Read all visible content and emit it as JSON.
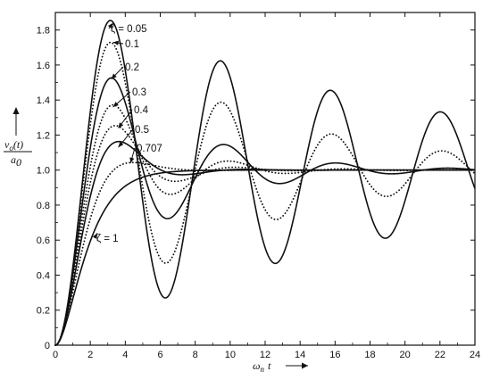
{
  "chart_data": {
    "type": "line",
    "title": "",
    "xlabel": {
      "symbol": "ω",
      "subscript": "n",
      "variable": "t"
    },
    "ylabel": {
      "numerator": "v",
      "numerator_sub": "o",
      "numerator_arg": "(t)",
      "denominator": "a",
      "denominator_sub": "0"
    },
    "xlim": [
      0,
      24
    ],
    "ylim": [
      0,
      1.9
    ],
    "x_ticks": [
      "0",
      "2",
      "4",
      "6",
      "8",
      "10",
      "12",
      "14",
      "16",
      "18",
      "20",
      "22",
      "24"
    ],
    "y_ticks": [
      "0",
      "0.2",
      "0.4",
      "0.6",
      "0.8",
      "1.0",
      "1.2",
      "1.4",
      "1.6",
      "1.8"
    ],
    "grid": false,
    "legend": "none",
    "series": [
      {
        "label": "ζ = 0.05",
        "zeta": 0.05,
        "style": "solid"
      },
      {
        "label": "0.1",
        "zeta": 0.1,
        "style": "dotted"
      },
      {
        "label": "0.2",
        "zeta": 0.2,
        "style": "solid"
      },
      {
        "label": "0.3",
        "zeta": 0.3,
        "style": "dotted"
      },
      {
        "label": "0.4",
        "zeta": 0.4,
        "style": "dotted"
      },
      {
        "label": "0.5",
        "zeta": 0.5,
        "style": "solid"
      },
      {
        "label": "0.707",
        "zeta": 0.707,
        "style": "dotted"
      },
      {
        "label": "ζ = 1",
        "zeta": 1.0,
        "style": "solid"
      }
    ],
    "annotations": [
      {
        "series": "ζ = 0.05",
        "text": "ζ = 0.05",
        "point": [
          3.3,
          1.84
        ]
      },
      {
        "series": "0.1",
        "text": "0.1",
        "point": [
          3.3,
          1.73
        ]
      },
      {
        "series": "0.2",
        "text": "0.2",
        "point": [
          3.2,
          1.52
        ]
      },
      {
        "series": "0.3",
        "text": "0.3",
        "point": [
          3.3,
          1.36
        ]
      },
      {
        "series": "0.4",
        "text": "0.4",
        "point": [
          3.6,
          1.24
        ]
      },
      {
        "series": "0.5",
        "text": "0.5",
        "point": [
          3.6,
          1.13
        ]
      },
      {
        "series": "0.707",
        "text": "0.707",
        "point": [
          4.3,
          1.04
        ]
      },
      {
        "series": "ζ = 1",
        "text": "ζ = 1",
        "point": [
          2.4,
          0.64
        ]
      }
    ]
  }
}
